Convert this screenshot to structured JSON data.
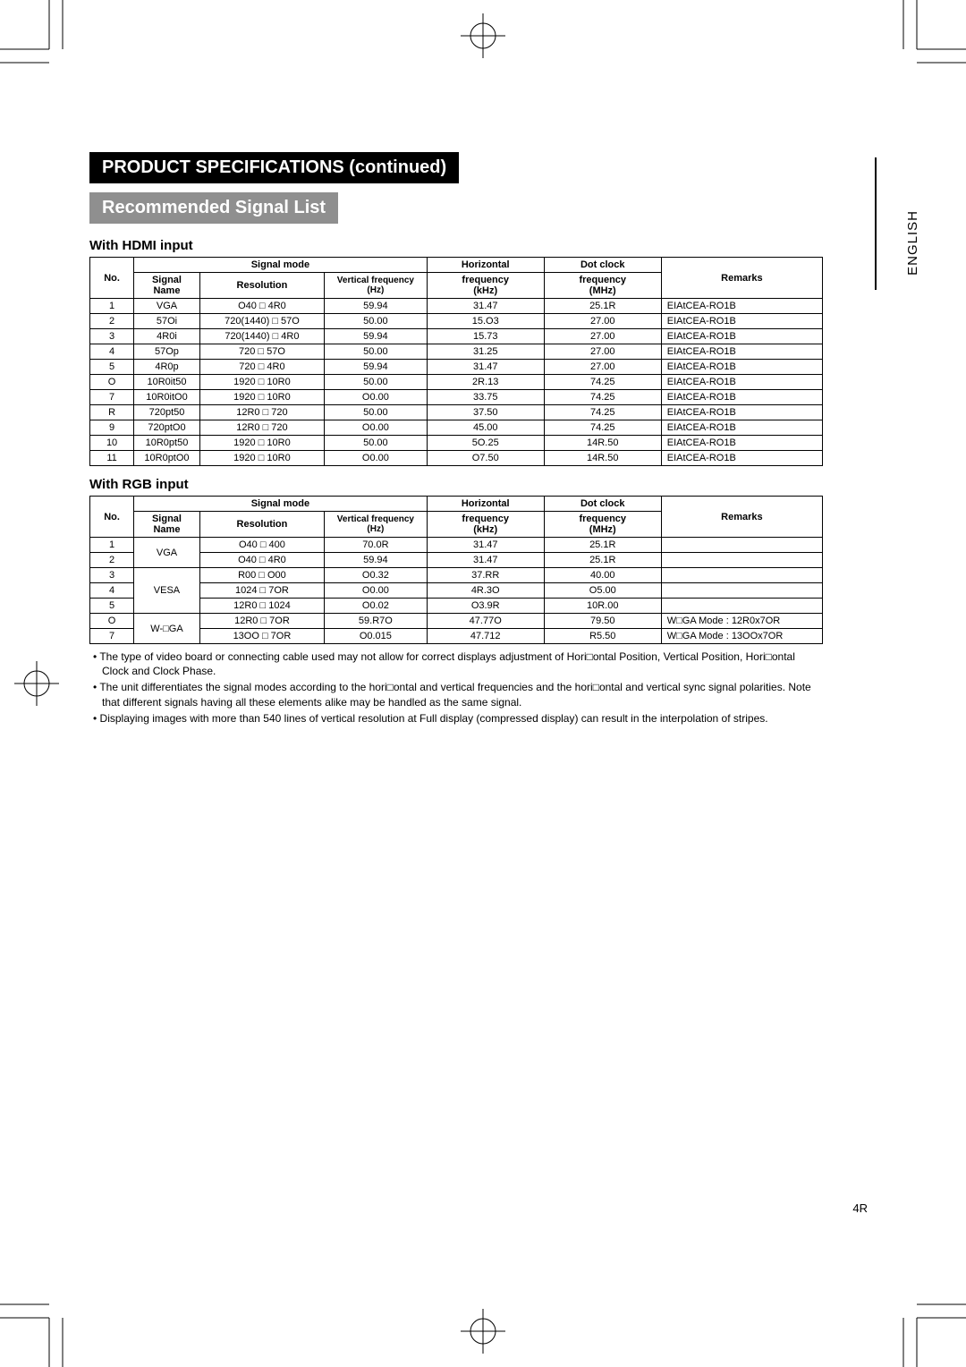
{
  "lang_label": "ENGLISH",
  "title_black": "PRODUCT SPECIFICATIONS (continued)",
  "title_grey": "Recommended Signal List",
  "page_number": "4R",
  "table_headers": {
    "no": "No.",
    "signal_mode": "Signal mode",
    "signal_name": "Signal Name",
    "resolution": "Resolution",
    "vfreq": "Vertical frequency (Hz)",
    "hfreq_top": "Horizontal",
    "hfreq_mid": "frequency",
    "hfreq_bot": "(kHz)",
    "dclk_top": "Dot clock",
    "dclk_mid": "frequency",
    "dclk_bot": "(MHz)",
    "remarks": "Remarks"
  },
  "hdmi": {
    "title": "With HDMI input",
    "rows": [
      {
        "no": "1",
        "name": "VGA",
        "res": "O40 □ 4R0",
        "vf": "59.94",
        "hf": "31.47",
        "dc": "25.1R",
        "rem": "EIAtCEA-RO1B"
      },
      {
        "no": "2",
        "name": "57Oi",
        "res": "720(1440) □ 57O",
        "vf": "50.00",
        "hf": "15.O3",
        "dc": "27.00",
        "rem": "EIAtCEA-RO1B"
      },
      {
        "no": "3",
        "name": "4R0i",
        "res": "720(1440) □ 4R0",
        "vf": "59.94",
        "hf": "15.73",
        "dc": "27.00",
        "rem": "EIAtCEA-RO1B"
      },
      {
        "no": "4",
        "name": "57Op",
        "res": "720 □ 57O",
        "vf": "50.00",
        "hf": "31.25",
        "dc": "27.00",
        "rem": "EIAtCEA-RO1B"
      },
      {
        "no": "5",
        "name": "4R0p",
        "res": "720 □ 4R0",
        "vf": "59.94",
        "hf": "31.47",
        "dc": "27.00",
        "rem": "EIAtCEA-RO1B"
      },
      {
        "no": "O",
        "name": "10R0it50",
        "res": "1920 □ 10R0",
        "vf": "50.00",
        "hf": "2R.13",
        "dc": "74.25",
        "rem": "EIAtCEA-RO1B"
      },
      {
        "no": "7",
        "name": "10R0itO0",
        "res": "1920 □ 10R0",
        "vf": "O0.00",
        "hf": "33.75",
        "dc": "74.25",
        "rem": "EIAtCEA-RO1B"
      },
      {
        "no": "R",
        "name": "720pt50",
        "res": "12R0 □ 720",
        "vf": "50.00",
        "hf": "37.50",
        "dc": "74.25",
        "rem": "EIAtCEA-RO1B"
      },
      {
        "no": "9",
        "name": "720ptO0",
        "res": "12R0 □ 720",
        "vf": "O0.00",
        "hf": "45.00",
        "dc": "74.25",
        "rem": "EIAtCEA-RO1B"
      },
      {
        "no": "10",
        "name": "10R0pt50",
        "res": "1920 □ 10R0",
        "vf": "50.00",
        "hf": "5O.25",
        "dc": "14R.50",
        "rem": "EIAtCEA-RO1B"
      },
      {
        "no": "11",
        "name": "10R0ptO0",
        "res": "1920 □ 10R0",
        "vf": "O0.00",
        "hf": "O7.50",
        "dc": "14R.50",
        "rem": "EIAtCEA-RO1B"
      }
    ]
  },
  "rgb": {
    "title": "With RGB input",
    "rows": [
      {
        "no": "1",
        "name": "VGA",
        "name_rowspan": 2,
        "res": "O40 □ 400",
        "vf": "70.0R",
        "hf": "31.47",
        "dc": "25.1R",
        "rem": ""
      },
      {
        "no": "2",
        "name": "",
        "res": "O40 □ 4R0",
        "vf": "59.94",
        "hf": "31.47",
        "dc": "25.1R",
        "rem": ""
      },
      {
        "no": "3",
        "name": "VESA",
        "name_rowspan": 3,
        "res": "R00 □ O00",
        "vf": "O0.32",
        "hf": "37.RR",
        "dc": "40.00",
        "rem": ""
      },
      {
        "no": "4",
        "name": "",
        "res": "1024 □ 7OR",
        "vf": "O0.00",
        "hf": "4R.3O",
        "dc": "O5.00",
        "rem": ""
      },
      {
        "no": "5",
        "name": "",
        "res": "12R0 □ 1024",
        "vf": "O0.02",
        "hf": "O3.9R",
        "dc": "10R.00",
        "rem": ""
      },
      {
        "no": "O",
        "name": "W-□GA",
        "name_rowspan": 2,
        "res": "12R0 □ 7OR",
        "vf": "59.R7O",
        "hf": "47.77O",
        "dc": "79.50",
        "rem": "W□GA Mode : 12R0x7OR"
      },
      {
        "no": "7",
        "name": "",
        "res": "13OO □ 7OR",
        "vf": "O0.015",
        "hf": "47.712",
        "dc": "R5.50",
        "rem": "W□GA Mode : 13OOx7OR"
      }
    ]
  },
  "notes": [
    "The type of video board or connecting cable used may not allow for correct displays adjustment of Hori□ontal Position, Vertical Position, Hori□ontal Clock and Clock Phase.",
    "The unit differentiates the signal modes according to the hori□ontal and vertical frequencies and the hori□ontal and vertical sync signal polarities.  Note that different signals having all these elements alike may be handled as the same signal.",
    "Displaying images with more than 540 lines of vertical resolution at Full display (compressed display) can result in the interpolation of stripes."
  ]
}
